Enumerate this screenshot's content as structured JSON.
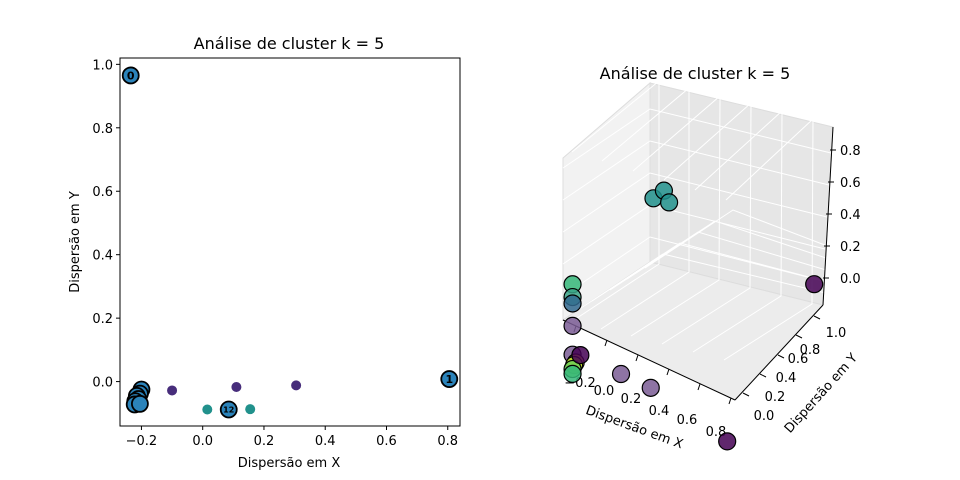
{
  "chart_data": [
    {
      "type": "scatter",
      "title": "Análise de cluster k = 5",
      "xlabel": "Dispersão em X",
      "ylabel": "Dispersão em Y",
      "xlim": [
        -0.27,
        0.84
      ],
      "ylim": [
        -0.14,
        1.02
      ],
      "xticks": [
        "−0.2",
        "0.0",
        "0.2",
        "0.4",
        "0.6",
        "0.8"
      ],
      "xtick_values": [
        -0.2,
        0.0,
        0.2,
        0.4,
        0.6,
        0.8
      ],
      "yticks": [
        "0.0",
        "0.2",
        "0.4",
        "0.6",
        "0.8",
        "1.0"
      ],
      "ytick_values": [
        0.0,
        0.2,
        0.4,
        0.6,
        0.8,
        1.0
      ],
      "grid": false,
      "points": [
        {
          "x": -0.1,
          "y": -0.028,
          "color": "#472d7b"
        },
        {
          "x": 0.11,
          "y": -0.017,
          "color": "#472d7b"
        },
        {
          "x": 0.305,
          "y": -0.012,
          "color": "#472d7b"
        },
        {
          "x": 0.015,
          "y": -0.088,
          "color": "#21918c"
        },
        {
          "x": 0.155,
          "y": -0.087,
          "color": "#21918c"
        }
      ],
      "centers": [
        {
          "x": -0.235,
          "y": 0.965,
          "label": "0"
        },
        {
          "x": 0.805,
          "y": 0.008,
          "label": "1"
        },
        {
          "x": 0.085,
          "y": -0.088,
          "label": "12"
        },
        {
          "x": -0.2,
          "y": -0.025,
          "label": ""
        },
        {
          "x": -0.205,
          "y": -0.038,
          "label": ""
        },
        {
          "x": -0.215,
          "y": -0.045,
          "label": ""
        },
        {
          "x": -0.21,
          "y": -0.055,
          "label": ""
        },
        {
          "x": -0.22,
          "y": -0.062,
          "label": ""
        },
        {
          "x": -0.222,
          "y": -0.072,
          "label": ""
        },
        {
          "x": -0.205,
          "y": -0.07,
          "label": ""
        }
      ],
      "center_color": "#2b83ba"
    },
    {
      "type": "scatter",
      "title": "Análise de cluster k = 5",
      "xlabel": "Dispersão em X",
      "ylabel": "Dispersão em Y",
      "xticks": [
        "−0.2",
        "0.0",
        "0.2",
        "0.4",
        "0.6",
        "0.8"
      ],
      "yticks": [
        "0.0",
        "0.2",
        "0.4",
        "0.6",
        "0.8",
        "1.0"
      ],
      "zticks": [
        "0.0",
        "0.2",
        "0.4",
        "0.6",
        "0.8"
      ],
      "grid": true,
      "points": [
        {
          "x": -0.2,
          "y": 0.95,
          "z": 0.72,
          "color": "#21918c"
        },
        {
          "x": -0.15,
          "y": 0.98,
          "z": 0.78,
          "color": "#21918c"
        },
        {
          "x": -0.1,
          "y": 0.95,
          "z": 0.74,
          "color": "#21918c"
        },
        {
          "x": 0.8,
          "y": 1.0,
          "z": 0.62,
          "color": "#440154"
        },
        {
          "x": -0.2,
          "y": 0.02,
          "z": 0.52,
          "color": "#35b779"
        },
        {
          "x": -0.2,
          "y": 0.02,
          "z": 0.44,
          "color": "#3aa387"
        },
        {
          "x": -0.2,
          "y": 0.02,
          "z": 0.4,
          "color": "#31688e"
        },
        {
          "x": -0.2,
          "y": 0.02,
          "z": 0.26,
          "color": "#7a5c94"
        },
        {
          "x": -0.2,
          "y": 0.02,
          "z": 0.08,
          "color": "#7a5c94"
        },
        {
          "x": -0.18,
          "y": 0.02,
          "z": 0.04,
          "color": "#fde725"
        },
        {
          "x": -0.19,
          "y": 0.02,
          "z": 0.02,
          "color": "#b5de2b"
        },
        {
          "x": -0.2,
          "y": 0.02,
          "z": -0.01,
          "color": "#6ece58"
        },
        {
          "x": -0.2,
          "y": 0.02,
          "z": -0.04,
          "color": "#35b779"
        },
        {
          "x": -0.15,
          "y": 0.02,
          "z": 0.1,
          "color": "#440154"
        },
        {
          "x": 0.11,
          "y": 0.02,
          "z": 0.1,
          "color": "#7a5c94"
        },
        {
          "x": 0.3,
          "y": 0.02,
          "z": 0.1,
          "color": "#7a5c94"
        },
        {
          "x": 0.8,
          "y": 0.0,
          "z": 0.0,
          "color": "#440154"
        }
      ]
    }
  ]
}
